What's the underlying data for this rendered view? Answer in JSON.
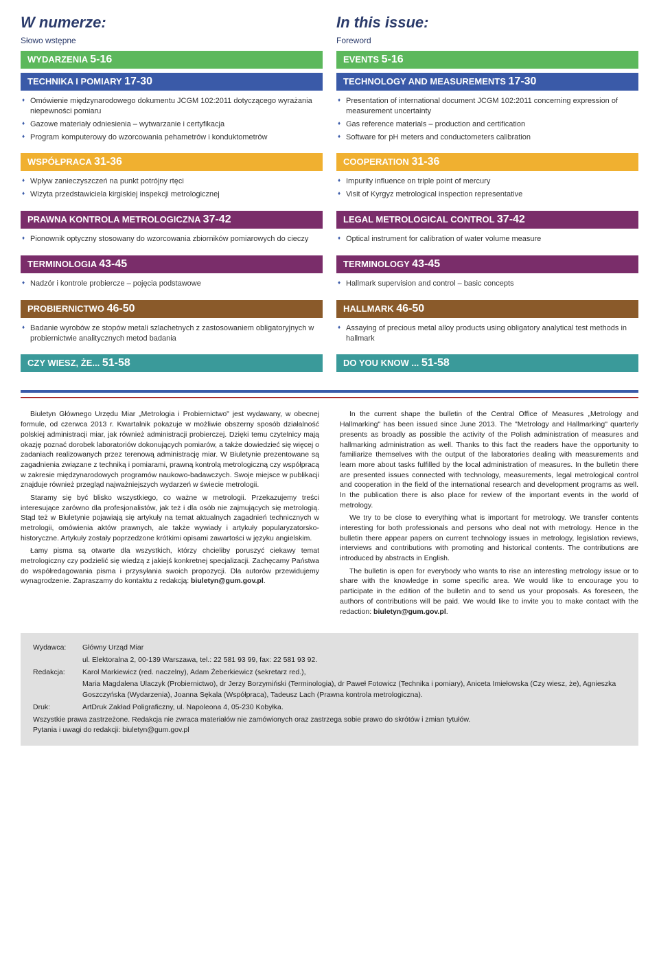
{
  "left": {
    "header": "W numerze:",
    "subheader": "Słowo wstępne",
    "sections": [
      {
        "band_class": "green",
        "label": "WYDARZENIA",
        "pages": "5-16",
        "items": []
      },
      {
        "band_class": "blue",
        "label": "TECHNIKA I POMIARY",
        "pages": "17-30",
        "items": [
          "Omówienie międzynarodowego dokumentu JCGM 102:2011 dotyczącego wyrażania niepewności pomiaru",
          "Gazowe materiały odniesienia – wytwarzanie i certyfikacja",
          "Program komputerowy do wzorcowania pehametrów i konduktometrów"
        ]
      },
      {
        "band_class": "yellow",
        "label": "WSPÓŁPRACA",
        "pages": "31-36",
        "items": [
          "Wpływ zanieczyszczeń na punkt potrójny rtęci",
          "Wizyta przedstawiciela kirgiskiej inspekcji metrologicznej"
        ]
      },
      {
        "band_class": "purple",
        "label": "PRAWNA KONTROLA METROLOGICZNA",
        "pages": "37-42",
        "items": [
          "Pionownik optyczny stosowany do wzorcowania zbiorników pomiarowych do cieczy"
        ]
      },
      {
        "band_class": "purple",
        "label": "TERMINOLOGIA",
        "pages": "43-45",
        "items": [
          "Nadzór i kontrole probiercze – pojęcia podstawowe"
        ]
      },
      {
        "band_class": "brown",
        "label": "PROBIERNICTWO",
        "pages": "46-50",
        "items": [
          "Badanie wyrobów ze stopów metali szlachetnych z zastosowaniem obligatoryjnych w probiernictwie analitycznych metod badania"
        ]
      },
      {
        "band_class": "teal",
        "label": "CZY WIESZ, ŻE...",
        "pages": "51-58",
        "items": []
      }
    ]
  },
  "right": {
    "header": "In this issue:",
    "subheader": "Foreword",
    "sections": [
      {
        "band_class": "green",
        "label": "EVENTS",
        "pages": "5-16",
        "items": []
      },
      {
        "band_class": "blue",
        "label": "TECHNOLOGY AND MEASUREMENTS",
        "pages": "17-30",
        "items": [
          "Presentation of international document JCGM 102:2011 concerning expression of measurement uncertainty",
          "Gas reference materials – production and certification",
          "Software for pH meters and conductometers calibration"
        ]
      },
      {
        "band_class": "yellow",
        "label": "COOPERATION",
        "pages": "31-36",
        "items": [
          "Impurity influence on triple point of mercury",
          "Visit of Kyrgyz metrological inspection representative"
        ]
      },
      {
        "band_class": "purple",
        "label": "LEGAL METROLOGICAL CONTROL",
        "pages": "37-42",
        "items": [
          "Optical instrument for calibration of water volume measure"
        ]
      },
      {
        "band_class": "purple",
        "label": "TERMINOLOGY",
        "pages": "43-45",
        "items": [
          "Hallmark supervision and control – basic concepts"
        ]
      },
      {
        "band_class": "brown",
        "label": "HALLMARK",
        "pages": "46-50",
        "items": [
          "Assaying of precious metal alloy products using obligatory analytical test methods in hallmark"
        ]
      },
      {
        "band_class": "teal",
        "label": "DO YOU KNOW ...",
        "pages": "51-58",
        "items": []
      }
    ]
  },
  "desc_left": [
    "Biuletyn Głównego Urzędu Miar „Metrologia i Probiernictwo\" jest wydawany, w obecnej formule, od czerwca 2013 r. Kwartalnik pokazuje w możliwie obszerny sposób działalność polskiej administracji miar, jak również administracji probierczej. Dzięki temu czytelnicy mają okazję poznać dorobek laboratoriów dokonujących pomiarów, a także dowiedzieć się więcej o zadaniach realizowanych przez terenową administrację miar. W Biuletynie prezentowane są zagadnienia związane z techniką i pomiarami, prawną kontrolą metrologiczną czy współpracą w zakresie międzynarodowych programów naukowo-badawczych. Swoje miejsce w publikacji znajduje również przegląd najważniejszych wydarzeń w świecie metrologii.",
    "Staramy się być blisko wszystkiego, co ważne w metrologii. Przekazujemy treści interesujące zarówno dla profesjonalistów, jak też i dla osób nie zajmujących się metrologią. Stąd też w Biuletynie pojawiają się artykuły na temat aktualnych zagadnień technicznych w metrologii, omówienia aktów prawnych, ale także wywiady i artykuły popularyzatorsko-historyczne. Artykuły zostały poprzedzone krótkimi opisami zawartości w języku angielskim.",
    "Łamy pisma są otwarte dla wszystkich, którzy chcieliby poruszyć ciekawy temat metrologiczny czy podzielić się wiedzą z jakiejś konkretnej specjalizacji. Zachęcamy Państwa do współredagowania pisma i przysyłania swoich propozycji. Dla autorów przewidujemy wynagrodzenie. Zapraszamy do kontaktu z redakcją: <span class=\"bold\">biuletyn@gum.gov.pl</span>."
  ],
  "desc_right": [
    "In the current shape the bulletin of the Central Office of Measures „Metrology and Hallmarking\" has been issued since June 2013. The \"Metrology and Hallmarking\" quarterly presents as broadly as possible the activity of the Polish administration of measures and hallmarking administration as well. Thanks to this fact the readers have the opportunity to familiarize themselves with the output of the laboratories dealing with measurements and learn more about tasks fulfilled by the local administration of measures. In the bulletin there are presented issues connected with technology, measurements, legal metrological control and cooperation in the field of the international research and development programs as well. In the publication there is also place for review of the important events in the world of metrology.",
    "We try to be close to everything what is important for metrology. We transfer contents interesting for both professionals and persons who deal not with metrology. Hence in the bulletin there appear papers on current technology issues in metrology, legislation reviews, interviews and contributions with promoting and historical contents. The contributions are introduced by abstracts in English.",
    "The bulletin is open for everybody who wants to rise an interesting metrology issue or to share with the knowledge in some specific area. We would like to encourage you to participate in the edition of the bulletin and to send us your proposals. As foreseen, the authors of contributions will be paid. We would like to invite you to make contact with the redaction: <span class=\"bold\">biuletyn@gum.gov.pl</span>."
  ],
  "footer": {
    "rows": [
      {
        "label": "Wydawca:",
        "text": "Główny Urząd Miar"
      },
      {
        "label": "",
        "text": "ul. Elektoralna 2, 00-139 Warszawa, tel.: 22 581 93 99, fax: 22 581 93 92."
      },
      {
        "label": "Redakcja:",
        "text": "Karol Markiewicz (red. naczelny), Adam Żeberkiewicz (sekretarz red.),"
      },
      {
        "label": "",
        "text": "Maria Magdalena Ulaczyk (Probiernictwo), dr Jerzy Borzymiński (Terminologia), dr Paweł Fotowicz (Technika i pomiary), Aniceta Imiełowska (Czy wiesz, że), Agnieszka Goszczyńska (Wydarzenia), Joanna Sękala (Współpraca), Tadeusz Lach (Prawna kontrola metrologiczna)."
      },
      {
        "label": "Druk:",
        "text": "ArtDruk Zakład Poligraficzny, ul. Napoleona 4, 05-230 Kobyłka."
      }
    ],
    "tail": [
      "Wszystkie prawa zastrzeżone. Redakcja nie zwraca materiałów nie zamówionych oraz zastrzega sobie prawo do skrótów i zmian tytułów.",
      "Pytania i uwagi do redakcji: biuletyn@gum.gov.pl"
    ]
  }
}
